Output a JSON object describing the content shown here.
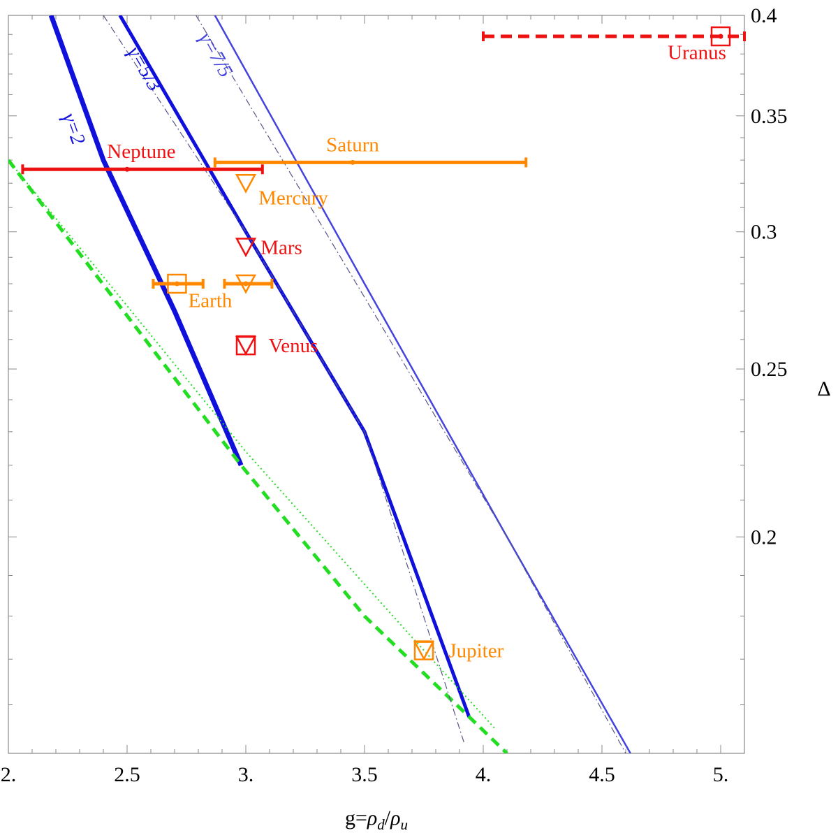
{
  "chart_data": {
    "type": "line",
    "xlabel": "g=ρd/ρu",
    "ylabel": "Δ",
    "xlim": [
      2.0,
      5.1
    ],
    "ylim": [
      0.15,
      0.4
    ],
    "y_scale": "log",
    "axis_side": {
      "x": "bottom",
      "y": "right"
    },
    "grid": false,
    "x_ticks": [
      {
        "value": 2.0,
        "label": "2."
      },
      {
        "value": 2.5,
        "label": "2.5"
      },
      {
        "value": 3.0,
        "label": "3."
      },
      {
        "value": 3.5,
        "label": "3.5"
      },
      {
        "value": 4.0,
        "label": "4."
      },
      {
        "value": 4.5,
        "label": "4.5"
      },
      {
        "value": 5.0,
        "label": "5."
      }
    ],
    "y_ticks": [
      {
        "value": 0.4,
        "label": "0.4"
      },
      {
        "value": 0.35,
        "label": "0.35"
      },
      {
        "value": 0.3,
        "label": "0.3"
      },
      {
        "value": 0.25,
        "label": "0.25"
      },
      {
        "value": 0.2,
        "label": "0.2"
      }
    ],
    "colors": {
      "blue": "#1010dd",
      "blue_light": "#4444dd",
      "green": "#22dd22",
      "red": "#ee1111",
      "orange": "#ff8800",
      "guide": "#555588"
    },
    "series": [
      {
        "label": "γ=2",
        "color": "#1010dd",
        "style": "solid",
        "width": 7,
        "label_pos": [
          2.25,
          0.343
        ],
        "points": [
          [
            2.18,
            0.4
          ],
          [
            2.4,
            0.33
          ],
          [
            2.7,
            0.27
          ],
          [
            2.98,
            0.22
          ]
        ]
      },
      {
        "label": "γ=5/3",
        "color": "#1010dd",
        "style": "solid",
        "width": 5,
        "label_pos": [
          2.55,
          0.371
        ],
        "points": [
          [
            2.47,
            0.4
          ],
          [
            3.0,
            0.3
          ],
          [
            3.5,
            0.23
          ],
          [
            3.94,
            0.1575
          ]
        ]
      },
      {
        "label": "γ=7/5",
        "color": "#4444dd",
        "style": "solid",
        "width": 2.5,
        "label_pos": [
          2.85,
          0.378
        ],
        "points": [
          [
            2.87,
            0.4
          ],
          [
            3.5,
            0.28
          ],
          [
            4.1,
            0.2
          ],
          [
            4.62,
            0.15
          ]
        ]
      },
      {
        "color": "#22dd22",
        "style": "dashed",
        "width": 5,
        "points": [
          [
            2.0,
            0.33
          ],
          [
            2.98,
            0.22
          ],
          [
            3.5,
            0.18
          ],
          [
            4.1,
            0.15
          ]
        ]
      },
      {
        "color": "#22dd22",
        "style": "dotted",
        "width": 2,
        "points": [
          [
            2.0,
            0.33
          ],
          [
            3.0,
            0.224
          ],
          [
            3.7,
            0.175
          ],
          [
            4.05,
            0.155
          ]
        ]
      },
      {
        "color": "#555588",
        "style": "dashdot",
        "width": 1.2,
        "points": [
          [
            2.4,
            0.4
          ],
          [
            3.0,
            0.3
          ],
          [
            3.5,
            0.23
          ],
          [
            3.92,
            0.152
          ]
        ]
      },
      {
        "color": "#555588",
        "style": "dashdot",
        "width": 1.2,
        "points": [
          [
            2.79,
            0.4
          ],
          [
            3.5,
            0.275
          ],
          [
            4.1,
            0.2
          ],
          [
            4.6,
            0.15
          ]
        ]
      }
    ],
    "planets": [
      {
        "name": "Uranus",
        "x": 5.0,
        "y": 0.389,
        "xerr": [
          4.0,
          5.1
        ],
        "marker": "square",
        "color": "#ee1111",
        "bar_style": "dashed",
        "label_pos": [
          4.9,
          0.381
        ]
      },
      {
        "name": "Saturn",
        "x": 3.45,
        "y": 0.329,
        "xerr": [
          2.87,
          4.18
        ],
        "marker": "dot",
        "color": "#ff8800",
        "bar_style": "solid",
        "label_pos": [
          3.45,
          0.337
        ]
      },
      {
        "name": "Neptune",
        "x": 2.5,
        "y": 0.326,
        "xerr": [
          2.06,
          3.07
        ],
        "marker": "dot",
        "color": "#ee1111",
        "bar_style": "solid",
        "label_pos": [
          2.56,
          0.334
        ]
      },
      {
        "name": "Mercury",
        "x": 3.0,
        "y": 0.32,
        "marker": "triangle",
        "color": "#ff8800",
        "label_pos": [
          3.2,
          0.314
        ]
      },
      {
        "name": "Mars",
        "x": 3.0,
        "y": 0.294,
        "marker": "triangle",
        "color": "#ee1111",
        "label_pos": [
          3.15,
          0.294
        ]
      },
      {
        "name": "Earth",
        "x": 2.71,
        "y": 0.28,
        "xerr": [
          2.61,
          2.82
        ],
        "marker": "square",
        "color": "#ff8800",
        "bar_style": "solid",
        "label_pos": [
          2.85,
          0.274
        ]
      },
      {
        "name": "",
        "x": 3.0,
        "y": 0.28,
        "xerr": [
          2.91,
          3.11
        ],
        "marker": "triangle",
        "color": "#ff8800",
        "bar_style": "solid"
      },
      {
        "name": "Venus",
        "x": 3.0,
        "y": 0.258,
        "marker": "square-triangle",
        "color": "#ee1111",
        "label_pos": [
          3.2,
          0.258
        ]
      },
      {
        "name": "Jupiter",
        "x": 3.75,
        "y": 0.172,
        "marker": "square-triangle",
        "color": "#ff8800",
        "label_pos": [
          3.97,
          0.172
        ]
      }
    ]
  }
}
